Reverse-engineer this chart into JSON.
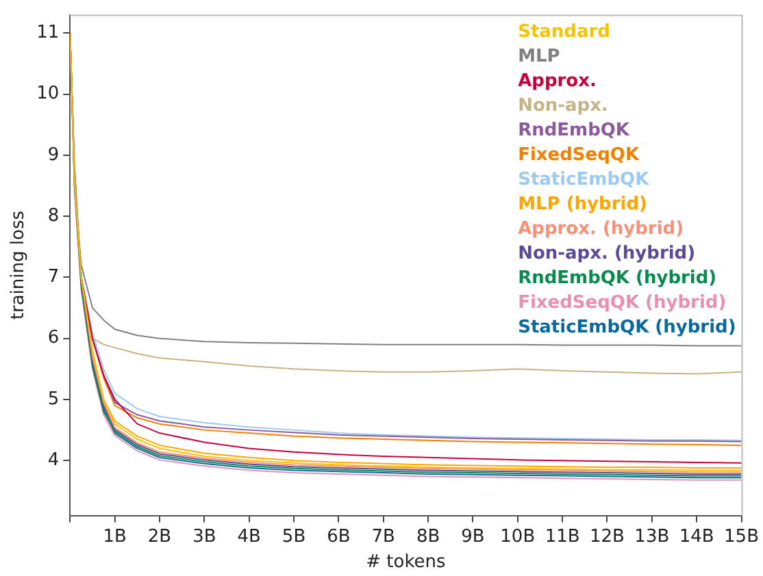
{
  "chart_data": {
    "type": "line",
    "xlabel": "# tokens",
    "ylabel": "training loss",
    "xlim": [
      0,
      15
    ],
    "ylim": [
      3.1,
      11.3
    ],
    "xticks": [
      {
        "value": 0,
        "label": null
      },
      {
        "value": 1,
        "label": "1B"
      },
      {
        "value": 2,
        "label": "2B"
      },
      {
        "value": 3,
        "label": "3B"
      },
      {
        "value": 4,
        "label": "4B"
      },
      {
        "value": 5,
        "label": "5B"
      },
      {
        "value": 6,
        "label": "6B"
      },
      {
        "value": 7,
        "label": "7B"
      },
      {
        "value": 8,
        "label": "8B"
      },
      {
        "value": 9,
        "label": "9B"
      },
      {
        "value": 10,
        "label": "10B"
      },
      {
        "value": 11,
        "label": "11B"
      },
      {
        "value": 12,
        "label": "12B"
      },
      {
        "value": 13,
        "label": "13B"
      },
      {
        "value": 14,
        "label": "14B"
      },
      {
        "value": 15,
        "label": "15B"
      }
    ],
    "yticks": [
      4,
      5,
      6,
      7,
      8,
      9,
      10,
      11
    ],
    "grid": false,
    "legend": "top right",
    "marker": "none",
    "line_style": "solid",
    "x": [
      0,
      0.1,
      0.25,
      0.5,
      0.75,
      1,
      1.5,
      2,
      3,
      4,
      5,
      6,
      7,
      8,
      9,
      10,
      11,
      12,
      13,
      14,
      15
    ],
    "series": [
      {
        "name": "Standard",
        "color": "#f5c400",
        "values": [
          11,
          8.6,
          7.0,
          5.8,
          5.0,
          4.6,
          4.35,
          4.2,
          4.07,
          4.0,
          3.96,
          3.93,
          3.91,
          3.89,
          3.88,
          3.87,
          3.86,
          3.85,
          3.85,
          3.84,
          3.84
        ]
      },
      {
        "name": "MLP",
        "color": "#808080",
        "values": [
          11,
          8.5,
          7.2,
          6.5,
          6.3,
          6.15,
          6.05,
          6.0,
          5.95,
          5.93,
          5.92,
          5.91,
          5.9,
          5.9,
          5.9,
          5.9,
          5.89,
          5.89,
          5.89,
          5.88,
          5.88
        ]
      },
      {
        "name": "Approx.",
        "color": "#c8003c",
        "values": [
          11,
          8.6,
          7.0,
          6.0,
          5.4,
          5.0,
          4.6,
          4.45,
          4.3,
          4.2,
          4.14,
          4.1,
          4.07,
          4.05,
          4.03,
          4.01,
          4.0,
          3.99,
          3.98,
          3.97,
          3.96
        ]
      },
      {
        "name": "Non-apx.",
        "color": "#c4b486",
        "values": [
          11,
          8.5,
          7.0,
          6.0,
          5.9,
          5.85,
          5.75,
          5.68,
          5.62,
          5.55,
          5.5,
          5.47,
          5.45,
          5.45,
          5.47,
          5.5,
          5.47,
          5.45,
          5.43,
          5.42,
          5.45
        ]
      },
      {
        "name": "RndEmbQK",
        "color": "#8a5a9a",
        "values": [
          11,
          8.6,
          7.0,
          6.0,
          5.4,
          4.95,
          4.75,
          4.65,
          4.55,
          4.5,
          4.46,
          4.42,
          4.4,
          4.38,
          4.36,
          4.35,
          4.34,
          4.33,
          4.32,
          4.32,
          4.31
        ]
      },
      {
        "name": "FixedSeqQK",
        "color": "#f08000",
        "values": [
          11,
          8.6,
          7.0,
          6.0,
          5.35,
          4.9,
          4.7,
          4.6,
          4.5,
          4.45,
          4.4,
          4.37,
          4.35,
          4.33,
          4.31,
          4.3,
          4.29,
          4.28,
          4.27,
          4.26,
          4.25
        ]
      },
      {
        "name": "StaticEmbQK",
        "color": "#9ccaf0",
        "values": [
          11,
          8.6,
          7.0,
          6.1,
          5.5,
          5.1,
          4.85,
          4.72,
          4.62,
          4.55,
          4.5,
          4.45,
          4.42,
          4.4,
          4.38,
          4.37,
          4.36,
          4.35,
          4.34,
          4.34,
          4.33
        ]
      },
      {
        "name": "MLP (hybrid)",
        "color": "#ffa500",
        "values": [
          11,
          8.6,
          7.0,
          5.8,
          5.0,
          4.65,
          4.4,
          4.25,
          4.12,
          4.05,
          4.0,
          3.97,
          3.95,
          3.93,
          3.92,
          3.91,
          3.9,
          3.89,
          3.89,
          3.88,
          3.88
        ]
      },
      {
        "name": "Approx. (hybrid)",
        "color": "#f99078",
        "values": [
          11,
          8.7,
          7.0,
          5.7,
          4.95,
          4.54,
          4.29,
          4.14,
          4.04,
          3.97,
          3.93,
          3.91,
          3.89,
          3.87,
          3.86,
          3.85,
          3.84,
          3.83,
          3.82,
          3.81,
          3.81
        ]
      },
      {
        "name": "Non-apx. (hybrid)",
        "color": "#5a4a98",
        "values": [
          11,
          8.8,
          6.95,
          5.65,
          4.9,
          4.51,
          4.26,
          4.11,
          4.01,
          3.94,
          3.9,
          3.88,
          3.86,
          3.84,
          3.83,
          3.82,
          3.81,
          3.8,
          3.79,
          3.78,
          3.78
        ]
      },
      {
        "name": "RndEmbQK (hybrid)",
        "color": "#0a8a50",
        "values": [
          11,
          8.5,
          6.85,
          5.55,
          4.8,
          4.48,
          4.23,
          4.08,
          3.98,
          3.91,
          3.87,
          3.85,
          3.83,
          3.81,
          3.8,
          3.79,
          3.78,
          3.77,
          3.76,
          3.75,
          3.75
        ]
      },
      {
        "name": "FixedSeqQK (hybrid)",
        "color": "#e890b0",
        "values": [
          11,
          8.4,
          6.8,
          5.5,
          4.75,
          4.41,
          4.16,
          4.01,
          3.91,
          3.84,
          3.8,
          3.78,
          3.76,
          3.74,
          3.73,
          3.72,
          3.71,
          3.7,
          3.69,
          3.68,
          3.68
        ]
      },
      {
        "name": "StaticEmbQK (hybrid)",
        "color": "#0a6aa0",
        "values": [
          11,
          8.6,
          6.9,
          5.6,
          4.85,
          4.45,
          4.2,
          4.05,
          3.95,
          3.88,
          3.84,
          3.82,
          3.8,
          3.78,
          3.77,
          3.76,
          3.75,
          3.74,
          3.73,
          3.72,
          3.72
        ]
      }
    ]
  }
}
